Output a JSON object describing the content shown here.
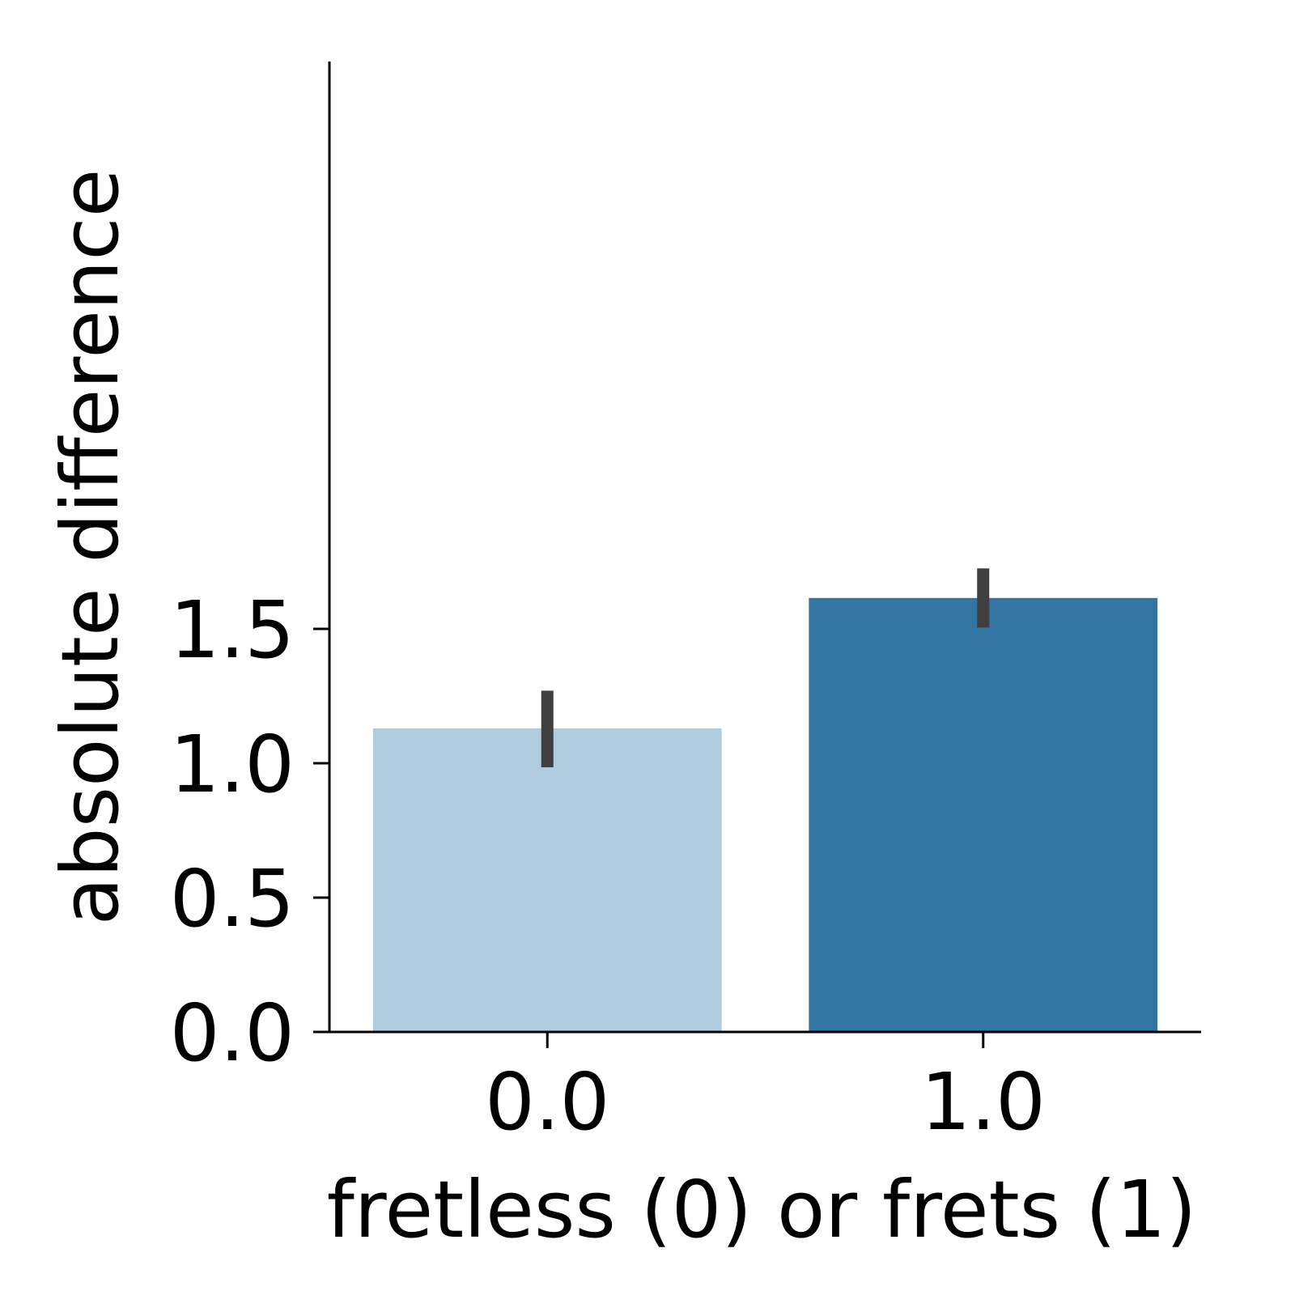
{
  "chart_data": {
    "type": "bar",
    "categories": [
      "0.0",
      "1.0"
    ],
    "values": [
      1.13,
      1.615
    ],
    "error_bars": [
      {
        "low": 0.985,
        "high": 1.27
      },
      {
        "low": 1.505,
        "high": 1.725
      }
    ],
    "bar_colors": [
      "#b0cde0",
      "#3274a2"
    ],
    "error_bar_color": "#3f3f3f",
    "title": "",
    "xlabel": "fretless (0) or frets (1)",
    "ylabel": "absolute difference",
    "ylim": [
      0,
      1.8
    ],
    "yticks": [
      "0.0",
      "0.5",
      "1.0",
      "1.5"
    ],
    "ytick_values": [
      0,
      0.5,
      1.0,
      1.5
    ],
    "grid": false,
    "legend": "none"
  }
}
